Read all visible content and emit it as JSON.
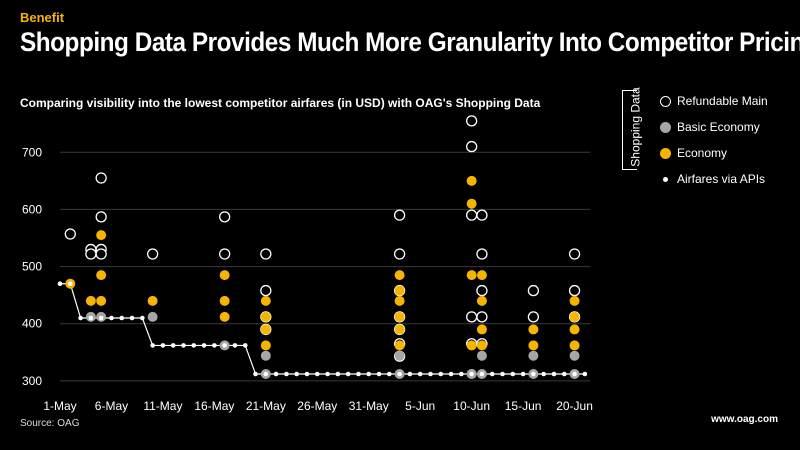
{
  "header": {
    "eyebrow": "Benefit",
    "title": "Shopping Data Provides Much More Granularity Into Competitor Pricing",
    "subtitle": "Comparing visibility into the lowest competitor airfares (in USD) with OAG's Shopping Data"
  },
  "footer": {
    "source": "Source: OAG",
    "site": "www.oag.com"
  },
  "legend": {
    "group_label": "Shopping Data",
    "items": [
      {
        "label": "Refundable Main"
      },
      {
        "label": "Basic Economy"
      },
      {
        "label": "Economy"
      },
      {
        "label": "Airfares via APIs"
      }
    ]
  },
  "colors": {
    "economy": "#f5b400",
    "basic": "#a6a6a6",
    "refundable": "#000000",
    "api": "#ffffff"
  },
  "chart_data": {
    "type": "scatter",
    "title": "Comparing visibility into the lowest competitor airfares (in USD) with OAG's Shopping Data",
    "xlabel": "",
    "ylabel": "",
    "xlim": [
      0,
      51.5
    ],
    "ylim": [
      270,
      760
    ],
    "yticks": [
      300,
      400,
      500,
      600,
      700
    ],
    "xticks": [
      0,
      5,
      10,
      15,
      20,
      25,
      30,
      35,
      40,
      45,
      50
    ],
    "xticklabels": [
      "1-May",
      "6-May",
      "11-May",
      "16-May",
      "21-May",
      "26-May",
      "31-May",
      "5-Jun",
      "10-Jun",
      "15-Jun",
      "20-Jun"
    ],
    "grid": true,
    "series": [
      {
        "name": "Airfares via APIs",
        "style": "line",
        "x": [
          0,
          1,
          2,
          3,
          4,
          5,
          6,
          7,
          8,
          9,
          10,
          11,
          12,
          13,
          14,
          15,
          16,
          17,
          18,
          19,
          20,
          21,
          22,
          23,
          24,
          25,
          26,
          27,
          28,
          29,
          30,
          31,
          32,
          33,
          34,
          35,
          36,
          37,
          38,
          39,
          40,
          41,
          42,
          43,
          44,
          45,
          46,
          47,
          48,
          49,
          50,
          51
        ],
        "y": [
          470,
          470,
          410,
          410,
          410,
          410,
          410,
          410,
          410,
          362,
          362,
          362,
          362,
          362,
          362,
          362,
          362,
          362,
          362,
          312,
          312,
          312,
          312,
          312,
          312,
          312,
          312,
          312,
          312,
          312,
          312,
          312,
          312,
          312,
          312,
          312,
          312,
          312,
          312,
          312,
          312,
          312,
          312,
          312,
          312,
          312,
          312,
          312,
          312,
          312,
          312,
          312
        ]
      },
      {
        "name": "Refundable Main",
        "style": "open",
        "x": [
          1,
          3,
          3,
          4,
          4,
          4,
          4,
          9,
          16,
          16,
          20,
          20,
          20,
          20,
          33,
          33,
          33,
          33,
          33,
          33,
          33,
          40,
          40,
          40,
          40,
          40,
          41,
          41,
          41,
          41,
          41,
          46,
          46,
          50,
          50,
          50
        ],
        "y": [
          557,
          530,
          522,
          655,
          587,
          530,
          522,
          522,
          587,
          522,
          522,
          458,
          412,
          390,
          590,
          522,
          458,
          412,
          390,
          365,
          343,
          755,
          710,
          590,
          412,
          365,
          590,
          522,
          458,
          412,
          365,
          458,
          412,
          522,
          458,
          412
        ]
      },
      {
        "name": "Basic Economy",
        "style": "gray",
        "x": [
          3,
          4,
          9,
          16,
          20,
          20,
          33,
          33,
          40,
          40,
          41,
          41,
          46,
          46,
          50,
          50
        ],
        "y": [
          412,
          412,
          412,
          362,
          344,
          312,
          344,
          312,
          312,
          312,
          344,
          312,
          344,
          312,
          344,
          312
        ]
      },
      {
        "name": "Economy",
        "style": "yellow",
        "x": [
          1,
          3,
          4,
          4,
          4,
          9,
          16,
          16,
          16,
          20,
          20,
          20,
          20,
          33,
          33,
          33,
          33,
          33,
          33,
          40,
          40,
          40,
          40,
          41,
          41,
          41,
          41,
          46,
          46,
          50,
          50,
          50,
          50
        ],
        "y": [
          470,
          440,
          555,
          485,
          440,
          440,
          485,
          440,
          412,
          440,
          412,
          390,
          362,
          485,
          458,
          440,
          412,
          390,
          362,
          650,
          610,
          485,
          362,
          485,
          440,
          390,
          362,
          390,
          362,
          440,
          412,
          390,
          362
        ]
      }
    ]
  }
}
